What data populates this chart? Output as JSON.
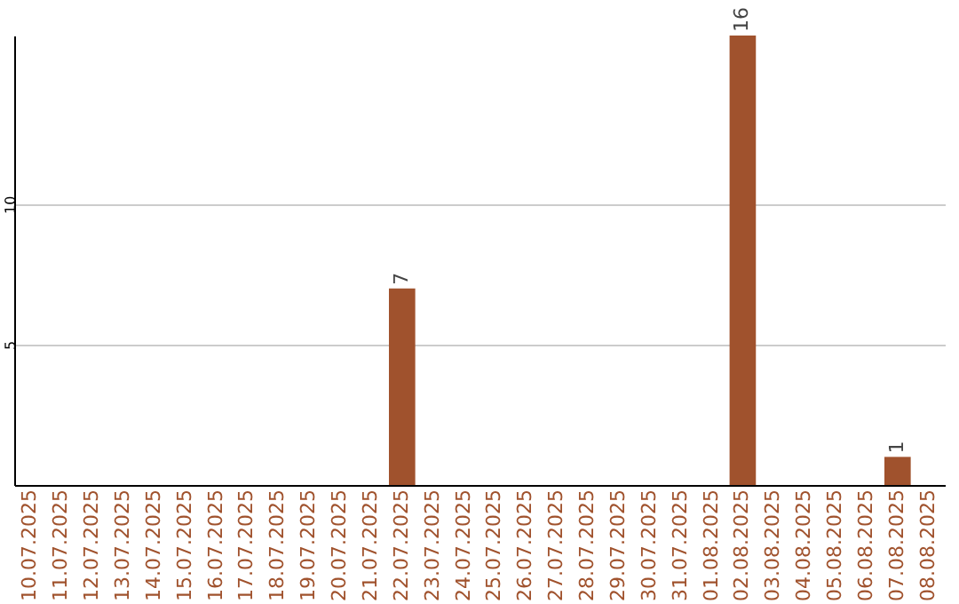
{
  "chart_data": {
    "type": "bar",
    "categories": [
      "10.07.2025",
      "11.07.2025",
      "12.07.2025",
      "13.07.2025",
      "14.07.2025",
      "15.07.2025",
      "16.07.2025",
      "17.07.2025",
      "18.07.2025",
      "19.07.2025",
      "20.07.2025",
      "21.07.2025",
      "22.07.2025",
      "23.07.2025",
      "24.07.2025",
      "25.07.2025",
      "26.07.2025",
      "27.07.2025",
      "28.07.2025",
      "29.07.2025",
      "30.07.2025",
      "31.07.2025",
      "01.08.2025",
      "02.08.2025",
      "03.08.2025",
      "04.08.2025",
      "05.08.2025",
      "06.08.2025",
      "07.08.2025",
      "08.08.2025"
    ],
    "values": [
      0,
      0,
      0,
      0,
      0,
      0,
      0,
      0,
      0,
      0,
      0,
      0,
      7,
      0,
      0,
      0,
      0,
      0,
      0,
      0,
      0,
      0,
      0,
      16,
      0,
      0,
      0,
      0,
      1,
      0
    ],
    "value_labels": [
      null,
      null,
      null,
      null,
      null,
      null,
      null,
      null,
      null,
      null,
      null,
      null,
      "7",
      null,
      null,
      null,
      null,
      null,
      null,
      null,
      null,
      null,
      null,
      "16",
      null,
      null,
      null,
      null,
      "1",
      null
    ],
    "color": "#a0522d",
    "ylim": [
      0,
      16
    ],
    "yticks": [
      5,
      10
    ],
    "grid": "y"
  }
}
